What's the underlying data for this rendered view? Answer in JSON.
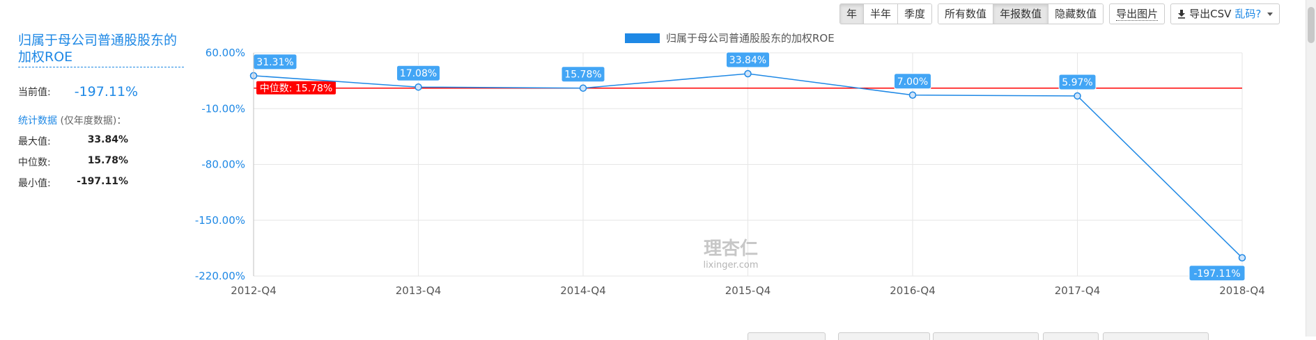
{
  "toolbar": {
    "period": [
      "年",
      "半年",
      "季度"
    ],
    "period_active": 0,
    "display": [
      "所有数值",
      "年报数值",
      "隐藏数值"
    ],
    "display_active": 1,
    "export_image": "导出图片",
    "export_csv": "导出CSV",
    "garbled": "乱码?"
  },
  "panel": {
    "title": "归属于母公司普通股股东的加权ROE",
    "current_label": "当前值:",
    "current_value": "-197.11%",
    "stats_link": "统计数据",
    "stats_note": "(仅年度数据)：",
    "max_label": "最大值:",
    "max_value": "33.84%",
    "median_label": "中位数:",
    "median_value": "15.78%",
    "min_label": "最小值:",
    "min_value": "-197.11%"
  },
  "watermark": {
    "cn": "理杏仁",
    "en": "lixinger.com"
  },
  "colors": {
    "series": "#1e88e5",
    "label_bg": "#42a5f5",
    "median": "#ff0000",
    "axis_text": "#1e88e5",
    "grid": "#e6e6e6"
  },
  "chart_data": {
    "type": "line",
    "legend": "归属于母公司普通股股东的加权ROE",
    "legend_position": "top-center",
    "categories": [
      "2012-Q4",
      "2013-Q4",
      "2014-Q4",
      "2015-Q4",
      "2016-Q4",
      "2017-Q4",
      "2018-Q4"
    ],
    "series": [
      {
        "name": "归属于母公司普通股股东的加权ROE",
        "values": [
          31.31,
          17.08,
          15.78,
          33.84,
          7.0,
          5.97,
          -197.11
        ]
      }
    ],
    "data_labels": [
      "31.31%",
      "17.08%",
      "15.78%",
      "33.84%",
      "7.00%",
      "5.97%",
      "-197.11%"
    ],
    "y_ticks": [
      60,
      -10,
      -80,
      -150,
      -220
    ],
    "y_tick_labels": [
      "60.00%",
      "-10.00%",
      "-80.00%",
      "-150.00%",
      "-220.00%"
    ],
    "ylim": [
      -220,
      60
    ],
    "median": {
      "value": 15.78,
      "label": "中位数: 15.78%"
    },
    "grid": true
  }
}
